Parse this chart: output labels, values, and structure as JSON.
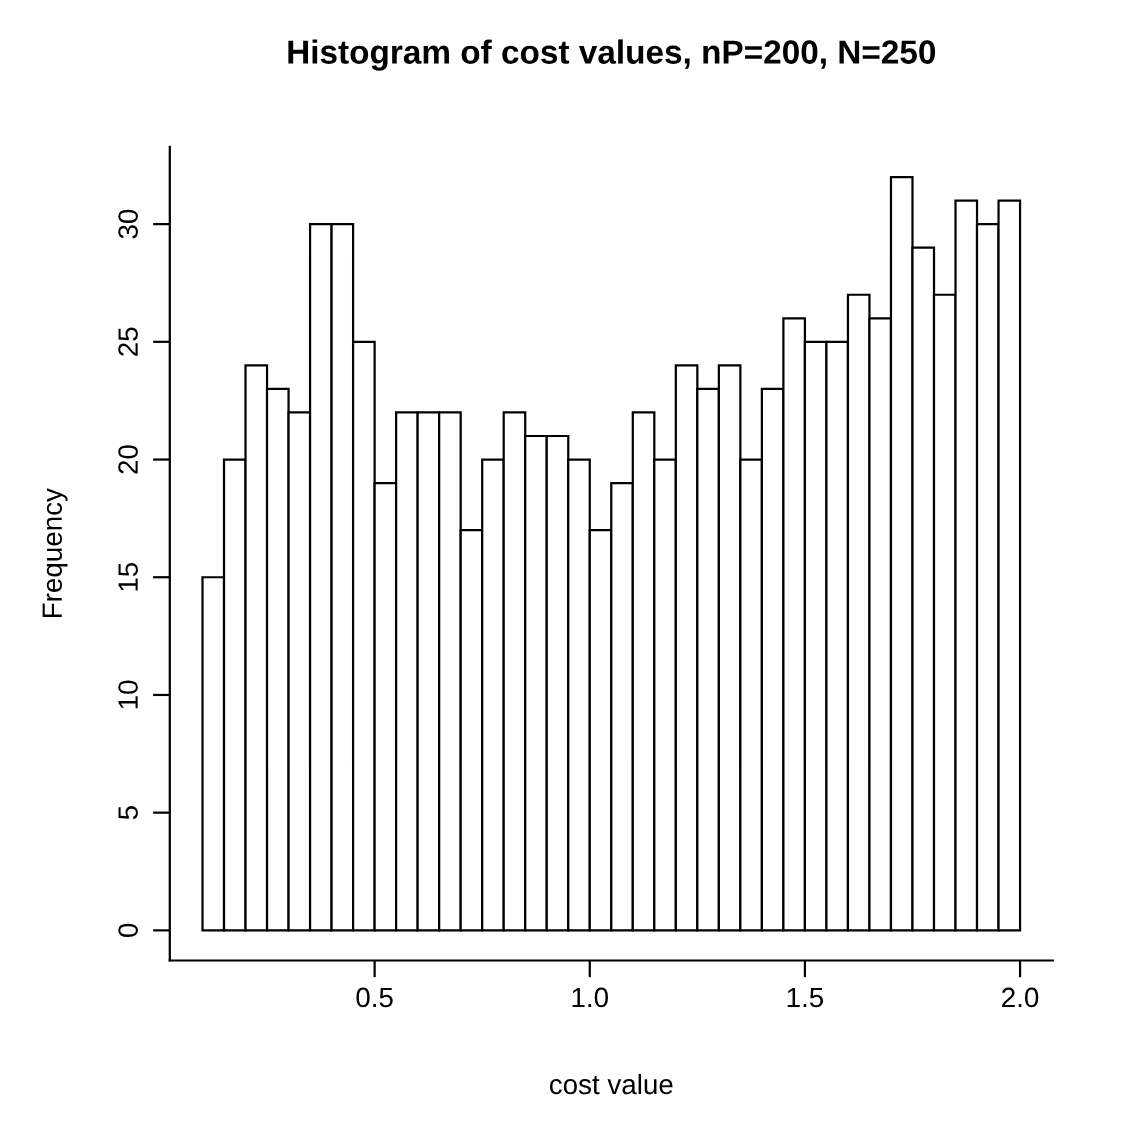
{
  "chart_data": {
    "type": "histogram",
    "title": "Histogram of cost values, nP=200, N=250",
    "xlabel": "cost value",
    "ylabel": "Frequency",
    "bins": [
      0.1,
      0.15,
      0.2,
      0.25,
      0.3,
      0.35,
      0.4,
      0.45,
      0.5,
      0.55,
      0.6,
      0.65,
      0.7,
      0.75,
      0.8,
      0.85,
      0.9,
      0.95,
      1.0,
      1.05,
      1.1,
      1.15,
      1.2,
      1.25,
      1.3,
      1.35,
      1.4,
      1.45,
      1.5,
      1.55,
      1.6,
      1.65,
      1.7,
      1.75,
      1.8,
      1.85,
      1.9,
      1.95,
      2.0
    ],
    "values": [
      15,
      20,
      24,
      23,
      22,
      30,
      30,
      25,
      19,
      22,
      22,
      22,
      17,
      20,
      22,
      21,
      21,
      20,
      17,
      19,
      22,
      20,
      24,
      23,
      24,
      20,
      23,
      26,
      25,
      25,
      27,
      26,
      32,
      29,
      27,
      31,
      30,
      31
    ],
    "color": "#ffffff",
    "xlim": [
      0.024,
      2.076
    ],
    "ylim": [
      -1.28,
      33.28
    ],
    "xticks": [
      0.5,
      {
        "value": 1,
        "label": "1.0"
      },
      1.5,
      {
        "value": 2,
        "label": "2.0"
      }
    ],
    "yticks": [
      0,
      5,
      10,
      15,
      20,
      25,
      30
    ],
    "grid": false
  }
}
